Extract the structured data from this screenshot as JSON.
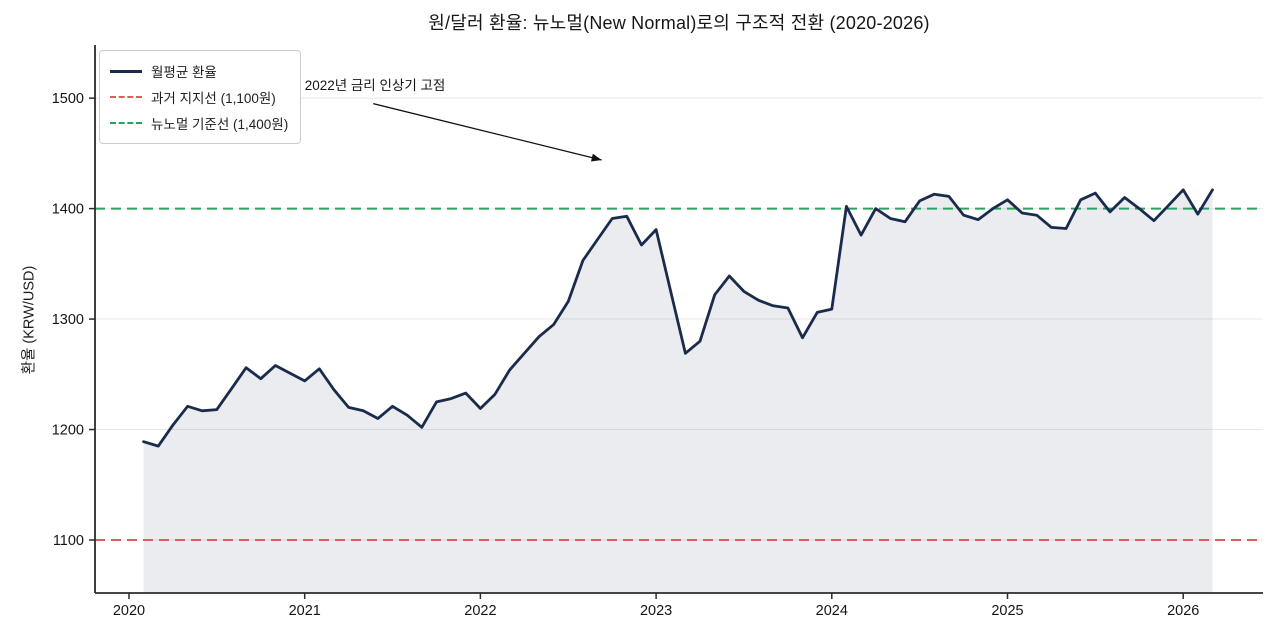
{
  "figure": {
    "title": "원/달러 환율: 뉴노멀(New Normal)로의 구조적 전환 (2020-2026)",
    "ylabel": "환율 (KRW/USD)"
  },
  "legend": [
    {
      "label": "월평균 환율",
      "color": "#1b2b4c",
      "dash": "solid"
    },
    {
      "label": "과거 지지선 (1,100원)",
      "color": "#d9605a",
      "dash": "dashed"
    },
    {
      "label": "뉴노멀 기준선 (1,400원)",
      "color": "#2aa35e",
      "dash": "dashed"
    }
  ],
  "annotation": {
    "text": "2022년 금리 인상기 고점"
  },
  "colors": {
    "line": "#1b2b4c",
    "area_fill": "rgba(27,43,76,0.09)",
    "support_line": "#d9605a",
    "new_normal_line": "#2aa35e",
    "grid": "#e8e8e8",
    "axis": "#2b2b2b",
    "tick_text": "#161616",
    "arrow": "#111111"
  },
  "chart_data": {
    "type": "line",
    "title": "원/달러 환율: 뉴노멀(New Normal)로의 구조적 전환 (2020-2026)",
    "xlabel": "",
    "ylabel": "환율 (KRW/USD)",
    "x_tick_labels": [
      "2020",
      "2021",
      "2022",
      "2023",
      "2024",
      "2025",
      "2026"
    ],
    "y_tick_labels": [
      1100,
      1200,
      1300,
      1400,
      1500
    ],
    "xlim": [
      2019.81,
      2026.45
    ],
    "ylim": [
      1053,
      1548
    ],
    "grid": "horizontal",
    "legend_position": "upper-left",
    "area_fill": true,
    "series": [
      {
        "name": "월평균 환율",
        "points": [
          [
            "2020-02",
            1189
          ],
          [
            "2020-03",
            1185
          ],
          [
            "2020-04",
            1204
          ],
          [
            "2020-05",
            1221
          ],
          [
            "2020-06",
            1217
          ],
          [
            "2020-07",
            1218
          ],
          [
            "2020-08",
            1237
          ],
          [
            "2020-09",
            1256
          ],
          [
            "2020-10",
            1246
          ],
          [
            "2020-11",
            1258
          ],
          [
            "2020-12",
            1251
          ],
          [
            "2021-01",
            1244
          ],
          [
            "2021-02",
            1255
          ],
          [
            "2021-03",
            1236
          ],
          [
            "2021-04",
            1220
          ],
          [
            "2021-05",
            1217
          ],
          [
            "2021-06",
            1210
          ],
          [
            "2021-07",
            1221
          ],
          [
            "2021-08",
            1213
          ],
          [
            "2021-09",
            1202
          ],
          [
            "2021-10",
            1225
          ],
          [
            "2021-11",
            1228
          ],
          [
            "2021-12",
            1233
          ],
          [
            "2022-01",
            1219
          ],
          [
            "2022-02",
            1232
          ],
          [
            "2022-03",
            1254
          ],
          [
            "2022-04",
            1269
          ],
          [
            "2022-05",
            1284
          ],
          [
            "2022-06",
            1295
          ],
          [
            "2022-07",
            1316
          ],
          [
            "2022-08",
            1353
          ],
          [
            "2022-09",
            1372
          ],
          [
            "2022-10",
            1391
          ],
          [
            "2022-11",
            1393
          ],
          [
            "2022-12",
            1367
          ],
          [
            "2023-01",
            1381
          ],
          [
            "2023-02",
            1325
          ],
          [
            "2023-03",
            1269
          ],
          [
            "2023-04",
            1280
          ],
          [
            "2023-05",
            1322
          ],
          [
            "2023-06",
            1339
          ],
          [
            "2023-07",
            1325
          ],
          [
            "2023-08",
            1317
          ],
          [
            "2023-09",
            1312
          ],
          [
            "2023-10",
            1310
          ],
          [
            "2023-11",
            1283
          ],
          [
            "2023-12",
            1306
          ],
          [
            "2024-01",
            1309
          ],
          [
            "2024-02",
            1402
          ],
          [
            "2024-03",
            1376
          ],
          [
            "2024-04",
            1400
          ],
          [
            "2024-05",
            1391
          ],
          [
            "2024-06",
            1388
          ],
          [
            "2024-07",
            1407
          ],
          [
            "2024-08",
            1413
          ],
          [
            "2024-09",
            1411
          ],
          [
            "2024-10",
            1394
          ],
          [
            "2024-11",
            1390
          ],
          [
            "2024-12",
            1400
          ],
          [
            "2025-01",
            1408
          ],
          [
            "2025-02",
            1396
          ],
          [
            "2025-03",
            1394
          ],
          [
            "2025-04",
            1383
          ],
          [
            "2025-05",
            1382
          ],
          [
            "2025-06",
            1408
          ],
          [
            "2025-07",
            1414
          ],
          [
            "2025-08",
            1397
          ],
          [
            "2025-09",
            1410
          ],
          [
            "2025-10",
            1400
          ],
          [
            "2025-11",
            1389
          ],
          [
            "2025-12",
            1403
          ],
          [
            "2026-01",
            1417
          ],
          [
            "2026-02",
            1395
          ],
          [
            "2026-03",
            1417
          ]
        ]
      }
    ],
    "reference_lines": [
      {
        "label": "과거 지지선 (1,100원)",
        "value": 1100,
        "color": "#d9605a",
        "style": "dashed"
      },
      {
        "label": "뉴노멀 기준선 (1,400원)",
        "value": 1400,
        "color": "#2aa35e",
        "style": "dashed"
      }
    ],
    "annotation": {
      "text": "2022년 금리 인상기 고점",
      "text_pos": [
        2021.0,
        1515
      ],
      "arrow_start": [
        2021.39,
        1495
      ],
      "arrow_tip": [
        2022.69,
        1444
      ]
    }
  }
}
